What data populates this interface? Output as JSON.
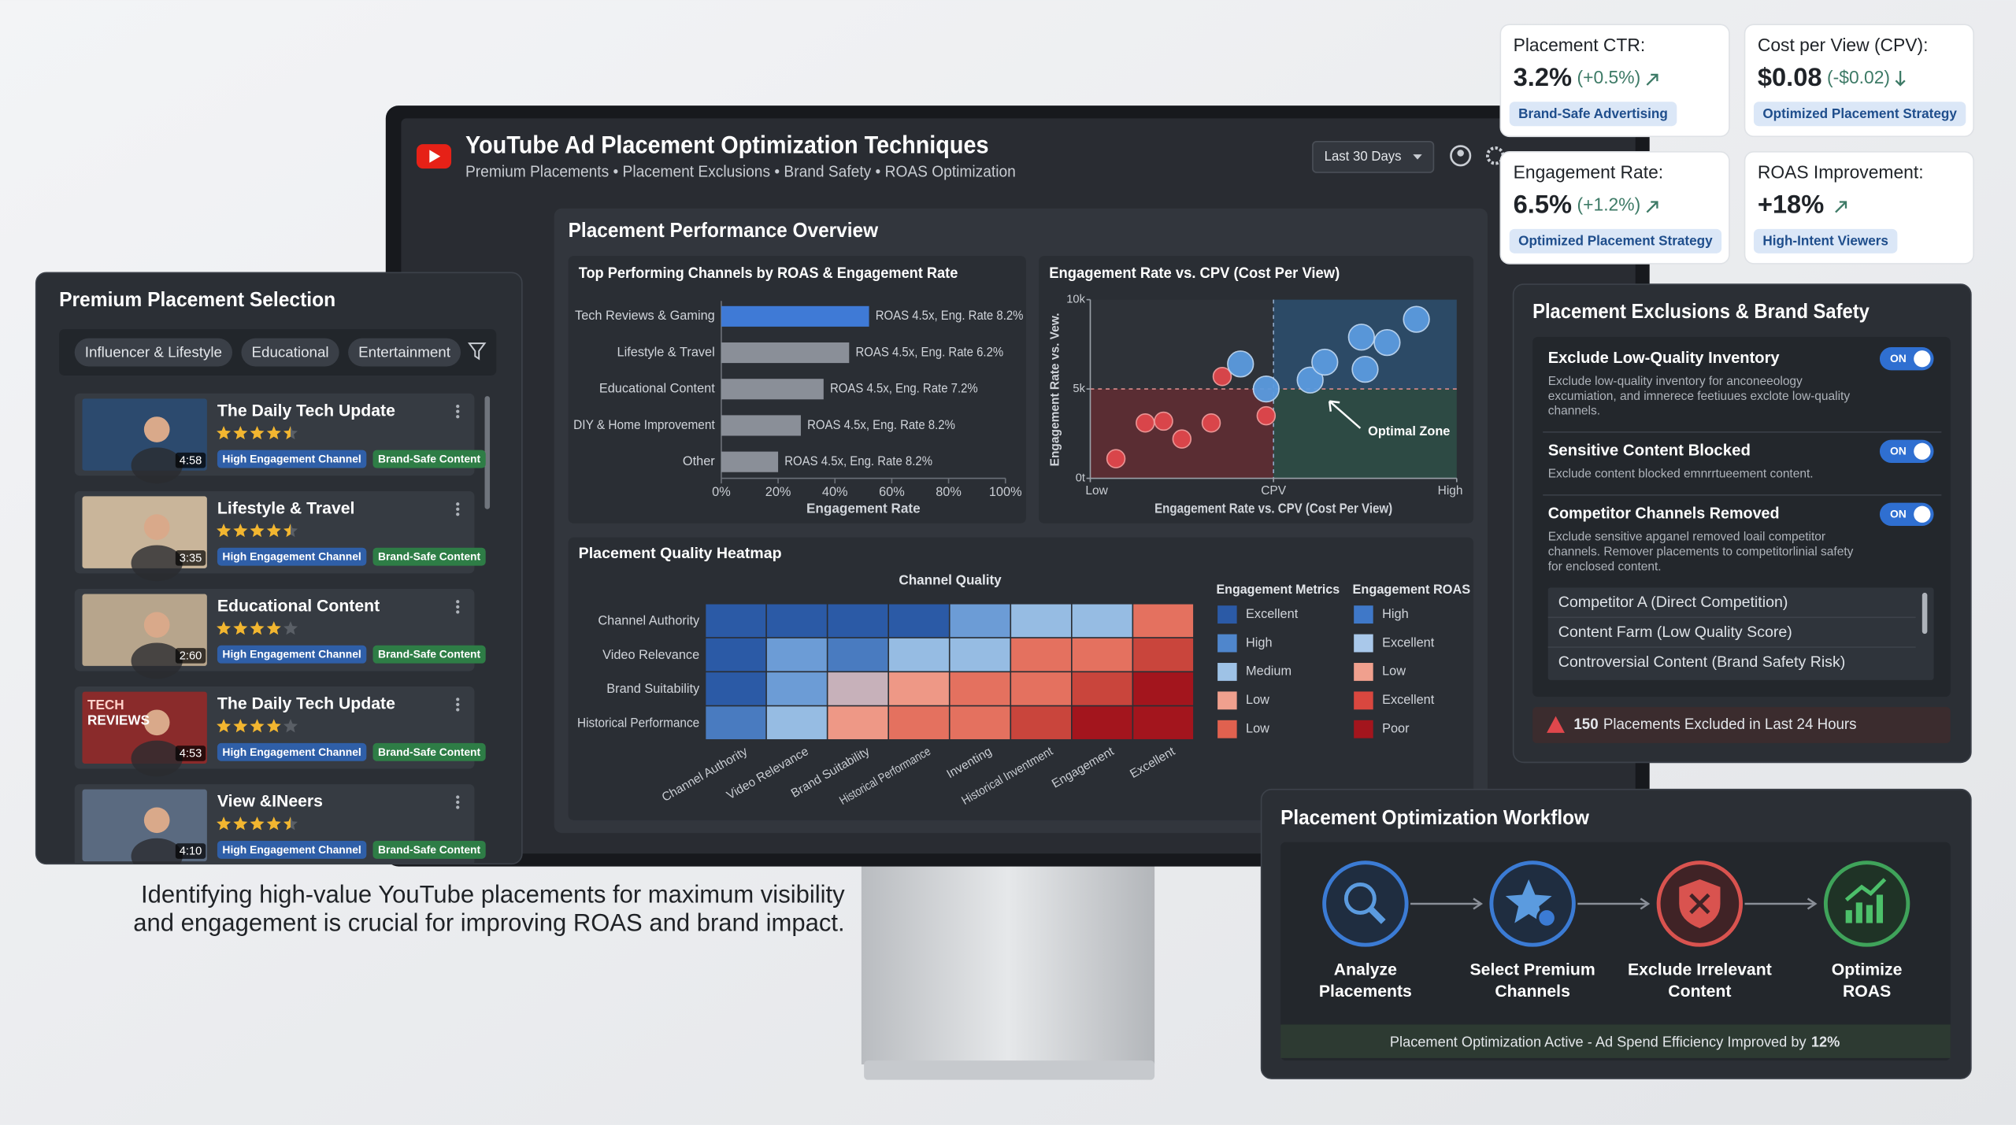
{
  "header": {
    "title": "YouTube Ad Placement Optimization Techniques",
    "subtitle": "Premium Placements • Placement Exclusions • Brand Safety • ROAS Optimization",
    "date_range": "Last 30 Days"
  },
  "kpis": [
    {
      "label": "Placement CTR:",
      "value": "3.2%",
      "change": "(+0.5%)",
      "trend": "up",
      "tag": "Brand-Safe Advertising"
    },
    {
      "label": "Cost per View (CPV):",
      "value": "$0.08",
      "change": "(-$0.02)",
      "trend": "down",
      "tag": "Optimized Placement Strategy"
    },
    {
      "label": "Engagement Rate:",
      "value": "6.5%",
      "change": "(+1.2%)",
      "trend": "up",
      "tag": "Optimized Placement Strategy"
    },
    {
      "label": "ROAS Improvement:",
      "value": "+18%",
      "trend": "up",
      "tag": "High-Intent Viewers"
    }
  ],
  "premium": {
    "title": "Premium Placement Selection",
    "filters": [
      "Influencer & Lifestyle",
      "Educational",
      "Entertainment"
    ],
    "items": [
      {
        "name": "The Daily Tech Update",
        "rating": 4.5,
        "duration": "4:58",
        "tags": [
          "High Engagement Channel",
          "Brand-Safe Content"
        ]
      },
      {
        "name": "Lifestyle & Travel",
        "rating": 4.5,
        "duration": "3:35",
        "tags": [
          "High Engagement Channel",
          "Brand-Safe Content"
        ]
      },
      {
        "name": "Educational Content",
        "rating": 4,
        "duration": "2:60",
        "tags": [
          "High Engagement Channel",
          "Brand-Safe Content"
        ]
      },
      {
        "name": "The Daily Tech Update",
        "rating": 4,
        "duration": "4:53",
        "thumb_text": [
          "TECH",
          "REVIEWS"
        ],
        "tags": [
          "High Engagement Channel",
          "Brand-Safe Content"
        ]
      },
      {
        "name": "View &INeers",
        "rating": 4.5,
        "duration": "4:10",
        "tags": [
          "High Engagement Channel",
          "Brand-Safe Content"
        ]
      }
    ]
  },
  "overview": {
    "title": "Placement Performance Overview"
  },
  "chart_data": [
    {
      "type": "bar",
      "title": "Top Performing Channels by ROAS & Engagement Rate",
      "categories": [
        "Tech Reviews & Gaming",
        "Lifestyle & Travel",
        "Educational Content",
        "DIY & Home Improvement",
        "Other"
      ],
      "values": [
        52,
        45,
        36,
        28,
        20
      ],
      "colors": [
        "#3f7ad6",
        "#8a8f98",
        "#8a8f98",
        "#8a8f98",
        "#8a8f98"
      ],
      "annotations": [
        "ROAS 4.5x, Eng. Rate 8.2%",
        "ROAS 4.5x, Eng. Rate 6.2%",
        "ROAS 4.5x, Eng. Rate 7.2%",
        "ROAS 4.5x, Eng. Rate 8.2%",
        "ROAS 4.5x, Eng. Rate 8.2%"
      ],
      "xlim": [
        0,
        100
      ],
      "xticks": [
        {
          "value": 0,
          "label": "0%"
        },
        {
          "value": 20,
          "label": "20%"
        },
        {
          "value": 40,
          "label": "40%"
        },
        {
          "value": 60,
          "label": "60%"
        },
        {
          "value": 80,
          "label": "80%"
        },
        {
          "value": 100,
          "label": "100%"
        }
      ],
      "xlabel": "Engagement Rate"
    },
    {
      "type": "scatter",
      "title": "Engagement Rate vs. CPV (Cost Per View)",
      "xlabel": "Engagement Rate vs. CPV (Cost Per View)",
      "ylabel": "Engagement Rate vs. Vew.",
      "xlim": [
        0,
        10
      ],
      "ylim": [
        0,
        10
      ],
      "xticks": [
        {
          "value": 0,
          "label": "Low"
        },
        {
          "value": 5,
          "label": "CPV"
        },
        {
          "value": 10,
          "label": "High"
        }
      ],
      "yticks": [
        {
          "value": 0,
          "label": "0t"
        },
        {
          "value": 5,
          "label": "5k"
        },
        {
          "value": 10,
          "label": "10k"
        }
      ],
      "series": [
        {
          "color": "#e0474c",
          "x": [
            0.7,
            1.5,
            2.0,
            2.5,
            3.3,
            3.6,
            4.8
          ],
          "y": [
            1.1,
            3.1,
            3.2,
            2.2,
            3.1,
            5.7,
            3.5
          ]
        },
        {
          "color": "#5b9bdf",
          "x": [
            4.1,
            4.8,
            6.0,
            6.4,
            7.4,
            8.1,
            7.5,
            8.9
          ],
          "y": [
            6.4,
            5.0,
            5.5,
            6.5,
            7.9,
            7.6,
            6.1,
            8.9
          ]
        }
      ],
      "annotation": "Optimal Zone"
    },
    {
      "type": "heatmap",
      "title": "Placement Quality Heatmap",
      "xlabel": "Channel Quality",
      "rows": [
        "Channel Authority",
        "Video Relevance",
        "Brand Suitability",
        "Historical Performance"
      ],
      "columns": [
        "Channel Authority",
        "Video Relevance",
        "Brand Suitability",
        "Historical Performance",
        "Inventing",
        "Historical Inventment",
        "Engagement",
        "Excellent"
      ],
      "values": [
        [
          9,
          9,
          9,
          9,
          7,
          6,
          6,
          3
        ],
        [
          9,
          7,
          8,
          6,
          6,
          3,
          3,
          2
        ],
        [
          9,
          7,
          5,
          4,
          3,
          3,
          2,
          1
        ],
        [
          8,
          6,
          4,
          3,
          3,
          2,
          1,
          1
        ]
      ],
      "colors": [
        "#a3151d",
        "#e0614f",
        "#f0a08e",
        "#9ec2e6",
        "#5b8fd0",
        "#2b5aa6"
      ],
      "legends": [
        {
          "title": "Engagement Metrics",
          "items": [
            {
              "label": "Excellent",
              "color": "#2b5aa6"
            },
            {
              "label": "High",
              "color": "#4f86cc"
            },
            {
              "label": "Medium",
              "color": "#9ec2e6"
            },
            {
              "label": "Low",
              "color": "#f0a08e"
            },
            {
              "label": "Low",
              "color": "#e0614f"
            }
          ]
        },
        {
          "title": "Engagement ROAS",
          "items": [
            {
              "label": "High",
              "color": "#3f78c8"
            },
            {
              "label": "Excellent",
              "color": "#a9c8ea"
            },
            {
              "label": "Low",
              "color": "#f0a08e"
            },
            {
              "label": "Excellent",
              "color": "#d9473f"
            },
            {
              "label": "Poor",
              "color": "#a3151d"
            }
          ]
        }
      ]
    }
  ],
  "exclusions": {
    "title": "Placement Exclusions & Brand Safety",
    "toggles": [
      {
        "title": "Exclude Low-Quality Inventory",
        "state": "ON",
        "desc": [
          "Exclude low-quality inventory for anconeeology",
          "excumiation, and imnerece feetiuues exclote low-quality",
          "channels."
        ]
      },
      {
        "title": "Sensitive Content Blocked",
        "state": "ON",
        "desc": [
          "Exclude content blocked emnrrtueement content."
        ]
      },
      {
        "title": "Competitor Channels Removed",
        "state": "ON",
        "desc": [
          "Exclude sensitive apganel removed loail competitor",
          "channels. Remover placements to competitorlinial safety",
          "for enclosed content."
        ]
      }
    ],
    "list": [
      "Competitor A (Direct Competition)",
      "Content Farm (Low Quality Score)",
      "Controversial Content (Brand Safety Risk)"
    ],
    "alert": {
      "count": "150",
      "text": "Placements Excluded in Last 24 Hours"
    }
  },
  "workflow": {
    "title": "Placement Optimization Workflow",
    "steps": [
      [
        "Analyze",
        "Placements"
      ],
      [
        "Select Premium",
        "Channels"
      ],
      [
        "Exclude Irrelevant",
        "Content"
      ],
      [
        "Optimize",
        "ROAS"
      ]
    ],
    "status": "Placement Optimization Active - Ad Spend Efficiency Improved by",
    "improvement": "12%"
  },
  "caption": [
    "Identifying high-value YouTube placements for maximum visibility",
    "and engagement is crucial for improving ROAS and brand impact."
  ]
}
